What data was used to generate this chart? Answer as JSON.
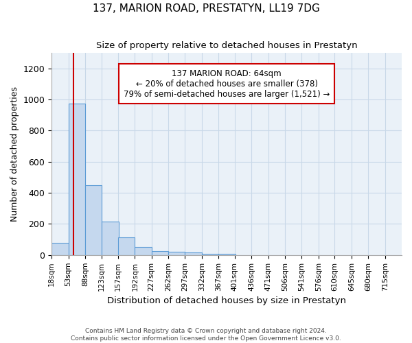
{
  "title": "137, MARION ROAD, PRESTATYN, LL19 7DG",
  "subtitle": "Size of property relative to detached houses in Prestatyn",
  "xlabel": "Distribution of detached houses by size in Prestatyn",
  "ylabel": "Number of detached properties",
  "footer_line1": "Contains HM Land Registry data © Crown copyright and database right 2024.",
  "footer_line2": "Contains public sector information licensed under the Open Government Licence v3.0.",
  "bin_edges": [
    18,
    53,
    88,
    123,
    157,
    192,
    227,
    262,
    297,
    332,
    367,
    401,
    436,
    471,
    506,
    541,
    576,
    610,
    645,
    680,
    715
  ],
  "bar_heights": [
    80,
    975,
    450,
    215,
    115,
    50,
    25,
    20,
    15,
    10,
    10,
    0,
    0,
    0,
    0,
    0,
    0,
    0,
    0,
    0
  ],
  "bar_color": "#c5d8ee",
  "bar_edgecolor": "#5b9bd5",
  "red_line_x": 64,
  "red_line_color": "#cc0000",
  "annotation_text": "137 MARION ROAD: 64sqm\n← 20% of detached houses are smaller (378)\n79% of semi-detached houses are larger (1,521) →",
  "annotation_box_color": "#ffffff",
  "annotation_box_edgecolor": "#cc0000",
  "ylim": [
    0,
    1300
  ],
  "yticks": [
    0,
    200,
    400,
    600,
    800,
    1000,
    1200
  ],
  "background_color": "#ffffff",
  "grid_color": "#c8d8e8",
  "plot_bg_color": "#eaf1f8"
}
